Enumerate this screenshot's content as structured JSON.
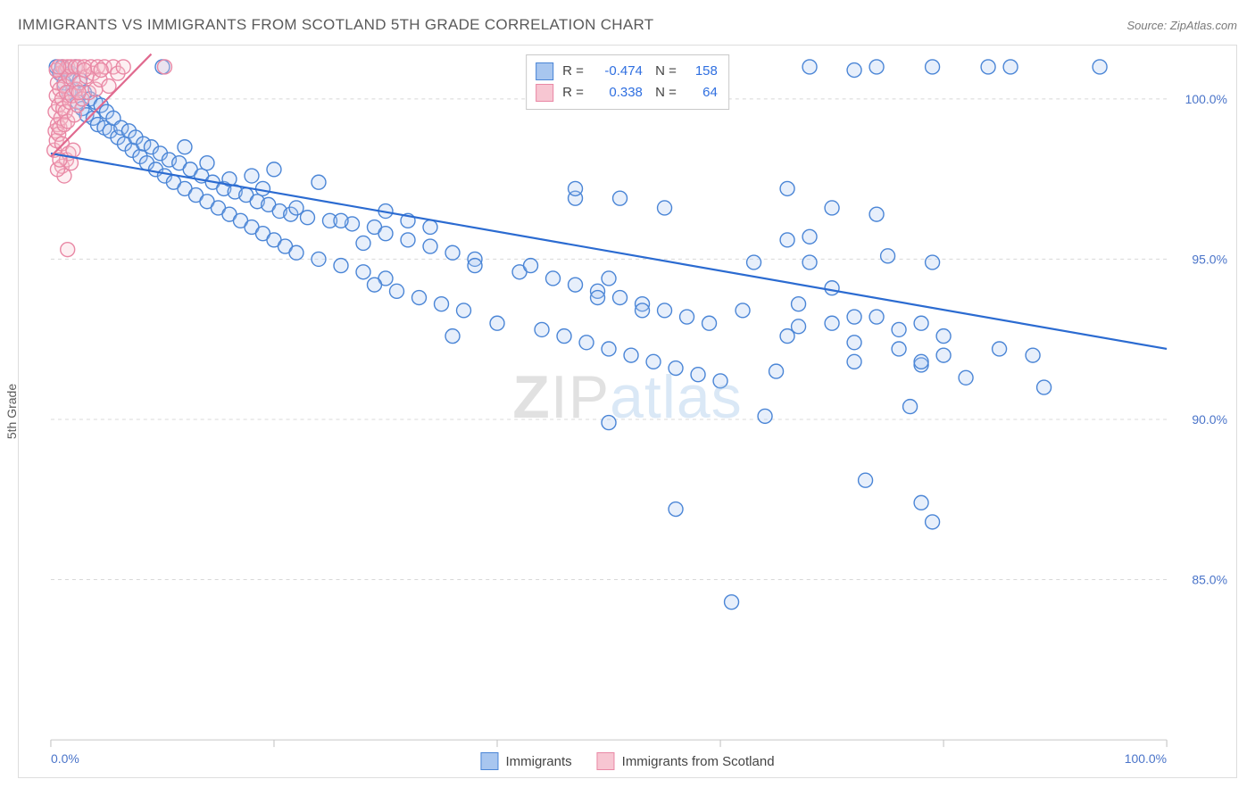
{
  "header": {
    "title": "IMMIGRANTS VS IMMIGRANTS FROM SCOTLAND 5TH GRADE CORRELATION CHART",
    "source": "Source: ZipAtlas.com"
  },
  "ylabel": "5th Grade",
  "watermark": {
    "part1": "ZIP",
    "part2": "atlas"
  },
  "chart": {
    "type": "scatter",
    "background_color": "#ffffff",
    "grid_color": "#d8d8d8",
    "xlim": [
      0,
      100
    ],
    "ylim": [
      80,
      101.5
    ],
    "xticks": [
      0,
      20,
      40,
      60,
      80,
      100
    ],
    "xtick_labels": [
      "0.0%",
      "",
      "",
      "",
      "",
      "100.0%"
    ],
    "yticks": [
      85,
      90,
      95,
      100
    ],
    "ytick_labels": [
      "85.0%",
      "90.0%",
      "95.0%",
      "100.0%"
    ],
    "marker_radius": 8,
    "series": [
      {
        "name": "Immigrants",
        "color_fill": "#a8c6ef",
        "color_stroke": "#4a85d6",
        "R": "-0.474",
        "N": "158",
        "regression": {
          "x1": 0,
          "y1": 98.3,
          "x2": 100,
          "y2": 92.2,
          "color": "#2b6bd1"
        },
        "points": [
          [
            0.5,
            101
          ],
          [
            0.8,
            100.8
          ],
          [
            1.0,
            101
          ],
          [
            1.2,
            100.5
          ],
          [
            1.4,
            100.9
          ],
          [
            1.6,
            100.2
          ],
          [
            1.8,
            100.8
          ],
          [
            2.0,
            100.3
          ],
          [
            2.2,
            101
          ],
          [
            2.4,
            99.9
          ],
          [
            2.6,
            100.6
          ],
          [
            2.8,
            99.7
          ],
          [
            3.0,
            100.2
          ],
          [
            3.2,
            99.5
          ],
          [
            3.5,
            100
          ],
          [
            3.8,
            99.4
          ],
          [
            4.0,
            99.9
          ],
          [
            4.2,
            99.2
          ],
          [
            4.5,
            99.8
          ],
          [
            4.8,
            99.1
          ],
          [
            5.0,
            99.6
          ],
          [
            5.3,
            99
          ],
          [
            5.6,
            99.4
          ],
          [
            6.0,
            98.8
          ],
          [
            6.3,
            99.1
          ],
          [
            6.6,
            98.6
          ],
          [
            7.0,
            99
          ],
          [
            7.3,
            98.4
          ],
          [
            7.6,
            98.8
          ],
          [
            8.0,
            98.2
          ],
          [
            8.3,
            98.6
          ],
          [
            8.6,
            98
          ],
          [
            9.0,
            98.5
          ],
          [
            9.4,
            97.8
          ],
          [
            9.8,
            98.3
          ],
          [
            10.2,
            97.6
          ],
          [
            10.6,
            98.1
          ],
          [
            11,
            97.4
          ],
          [
            11.5,
            98
          ],
          [
            12,
            97.2
          ],
          [
            12.5,
            97.8
          ],
          [
            13,
            97
          ],
          [
            13.5,
            97.6
          ],
          [
            14,
            96.8
          ],
          [
            14.5,
            97.4
          ],
          [
            15,
            96.6
          ],
          [
            15.5,
            97.2
          ],
          [
            16,
            96.4
          ],
          [
            16.5,
            97.1
          ],
          [
            17,
            96.2
          ],
          [
            17.5,
            97
          ],
          [
            18,
            96
          ],
          [
            18.5,
            96.8
          ],
          [
            19,
            95.8
          ],
          [
            19.5,
            96.7
          ],
          [
            20,
            95.6
          ],
          [
            20.5,
            96.5
          ],
          [
            21,
            95.4
          ],
          [
            21.5,
            96.4
          ],
          [
            22,
            95.2
          ],
          [
            23,
            96.3
          ],
          [
            24,
            95
          ],
          [
            25,
            96.2
          ],
          [
            26,
            94.8
          ],
          [
            27,
            96.1
          ],
          [
            28,
            94.6
          ],
          [
            29,
            96
          ],
          [
            30,
            94.4
          ],
          [
            18,
            97.6
          ],
          [
            19,
            97.2
          ],
          [
            20,
            97.8
          ],
          [
            22,
            96.6
          ],
          [
            24,
            97.4
          ],
          [
            26,
            96.2
          ],
          [
            10,
            101
          ],
          [
            12,
            98.5
          ],
          [
            14,
            98
          ],
          [
            16,
            97.5
          ],
          [
            28,
            95.5
          ],
          [
            29,
            94.2
          ],
          [
            30,
            95.8
          ],
          [
            31,
            94
          ],
          [
            32,
            95.6
          ],
          [
            33,
            93.8
          ],
          [
            34,
            95.4
          ],
          [
            35,
            93.6
          ],
          [
            36,
            95.2
          ],
          [
            37,
            93.4
          ],
          [
            38,
            95
          ],
          [
            36,
            92.6
          ],
          [
            38,
            94.8
          ],
          [
            40,
            93
          ],
          [
            42,
            94.6
          ],
          [
            30,
            96.5
          ],
          [
            32,
            96.2
          ],
          [
            34,
            96
          ],
          [
            44,
            92.8
          ],
          [
            45,
            94.4
          ],
          [
            43,
            94.8
          ],
          [
            46,
            92.6
          ],
          [
            47,
            94.2
          ],
          [
            48,
            92.4
          ],
          [
            47,
            96.9
          ],
          [
            49,
            94
          ],
          [
            50,
            92.2
          ],
          [
            51,
            93.8
          ],
          [
            52,
            92
          ],
          [
            53,
            93.6
          ],
          [
            54,
            91.8
          ],
          [
            55,
            93.4
          ],
          [
            47,
            97.2
          ],
          [
            49,
            93.8
          ],
          [
            51,
            96.9
          ],
          [
            53,
            93.4
          ],
          [
            55,
            96.6
          ],
          [
            50,
            94.4
          ],
          [
            56,
            91.6
          ],
          [
            57,
            93.2
          ],
          [
            58,
            91.4
          ],
          [
            59,
            93
          ],
          [
            60,
            91.2
          ],
          [
            50,
            89.9
          ],
          [
            62,
            93.4
          ],
          [
            63,
            94.9
          ],
          [
            66,
            95.6
          ],
          [
            66,
            97.2
          ],
          [
            67,
            93.6
          ],
          [
            68,
            95.7
          ],
          [
            70,
            96.6
          ],
          [
            72,
            93.2
          ],
          [
            56,
            87.2
          ],
          [
            65,
            91.5
          ],
          [
            66,
            92.6
          ],
          [
            67,
            92.9
          ],
          [
            61,
            84.3
          ],
          [
            64,
            90.1
          ],
          [
            72,
            91.8
          ],
          [
            68,
            101
          ],
          [
            70,
            93
          ],
          [
            72,
            92.4
          ],
          [
            74,
            93.2
          ],
          [
            76,
            92.2
          ],
          [
            74,
            96.4
          ],
          [
            78,
            93
          ],
          [
            80,
            92
          ],
          [
            68,
            94.9
          ],
          [
            70,
            94.1
          ],
          [
            73,
            88.1
          ],
          [
            75,
            95.1
          ],
          [
            77,
            90.4
          ],
          [
            78,
            87.4
          ],
          [
            79,
            86.8
          ],
          [
            79,
            94.9
          ],
          [
            72,
            100.9
          ],
          [
            78,
            91.7
          ],
          [
            76,
            92.8
          ],
          [
            78,
            91.8
          ],
          [
            80,
            92.6
          ],
          [
            82,
            91.3
          ],
          [
            74,
            101
          ],
          [
            79,
            101
          ],
          [
            84,
            101
          ],
          [
            85,
            92.2
          ],
          [
            86,
            101
          ],
          [
            88,
            92
          ],
          [
            89,
            91
          ],
          [
            94,
            101
          ]
        ]
      },
      {
        "name": "Immigrants from Scotland",
        "color_fill": "#f7c6d2",
        "color_stroke": "#e988a5",
        "R": "0.338",
        "N": "64",
        "regression": {
          "x1": 0,
          "y1": 98.2,
          "x2": 9,
          "y2": 101.4,
          "color": "#e06a8f"
        },
        "points": [
          [
            0.3,
            98.4
          ],
          [
            0.4,
            99
          ],
          [
            0.4,
            99.6
          ],
          [
            0.5,
            98.7
          ],
          [
            0.5,
            100.1
          ],
          [
            0.6,
            99.2
          ],
          [
            0.6,
            100.5
          ],
          [
            0.7,
            98.9
          ],
          [
            0.7,
            99.8
          ],
          [
            0.8,
            100.3
          ],
          [
            0.8,
            99.1
          ],
          [
            0.9,
            100.8
          ],
          [
            0.9,
            99.4
          ],
          [
            1.0,
            100
          ],
          [
            1.0,
            98.6
          ],
          [
            1.1,
            101
          ],
          [
            1.1,
            99.7
          ],
          [
            1.2,
            100.4
          ],
          [
            1.2,
            99.2
          ],
          [
            1.3,
            100.9
          ],
          [
            1.3,
            99.6
          ],
          [
            1.4,
            100.2
          ],
          [
            1.5,
            101
          ],
          [
            1.5,
            99.3
          ],
          [
            1.6,
            100.7
          ],
          [
            1.7,
            99.9
          ],
          [
            1.8,
            101
          ],
          [
            1.9,
            100.1
          ],
          [
            2.0,
            100.6
          ],
          [
            2.1,
            99.5
          ],
          [
            2.2,
            101
          ],
          [
            2.3,
            100.3
          ],
          [
            2.4,
            99.8
          ],
          [
            2.5,
            101
          ],
          [
            2.6,
            100.5
          ],
          [
            2.8,
            100
          ],
          [
            3.0,
            101
          ],
          [
            3.2,
            100.7
          ],
          [
            3.4,
            100.2
          ],
          [
            3.6,
            101
          ],
          [
            3.8,
            100.8
          ],
          [
            4.0,
            100.3
          ],
          [
            4.2,
            101
          ],
          [
            4.4,
            100.6
          ],
          [
            4.8,
            101
          ],
          [
            5.2,
            100.4
          ],
          [
            5.6,
            101
          ],
          [
            6.0,
            100.8
          ],
          [
            6.5,
            101
          ],
          [
            1.0,
            97.9
          ],
          [
            1.2,
            97.6
          ],
          [
            1.4,
            98.1
          ],
          [
            1.6,
            98.3
          ],
          [
            1.8,
            98
          ],
          [
            2.0,
            98.4
          ],
          [
            0.6,
            97.8
          ],
          [
            0.8,
            98.1
          ],
          [
            1.5,
            95.3
          ],
          [
            0.5,
            100.9
          ],
          [
            0.7,
            101
          ],
          [
            10.2,
            101
          ],
          [
            3.0,
            100.9
          ],
          [
            2.5,
            100.2
          ],
          [
            4.5,
            100.9
          ]
        ]
      }
    ]
  },
  "legend_bottom": [
    {
      "label": "Immigrants",
      "fill": "#a8c6ef",
      "stroke": "#4a85d6"
    },
    {
      "label": "Immigrants from Scotland",
      "fill": "#f7c6d2",
      "stroke": "#e988a5"
    }
  ]
}
